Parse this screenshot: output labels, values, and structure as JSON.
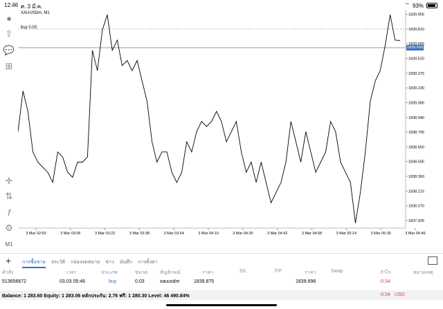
{
  "status": {
    "time": "12:46",
    "date": "ศ. 3 มี.ค.",
    "battery": "93%"
  },
  "chart": {
    "symbol_label": "XAUUSDm, M1",
    "buy_label": "buy 0.03",
    "current_price_tag": "1839.698",
    "y_ticks": [
      "1839.955",
      "1839.810",
      "1839.665",
      "1839.520",
      "1839.375",
      "1839.230",
      "1839.085",
      "1838.940",
      "1838.795",
      "1838.650",
      "1838.505",
      "1838.360",
      "1838.215",
      "1838.070",
      "1837.925"
    ],
    "x_ticks": [
      "3 Mar 02:50",
      "3 Mar 03:06",
      "3 Mar 03:22",
      "3 Mar 03:38",
      "3 Mar 03:54",
      "3 Mar 04:10",
      "3 Mar 04:26",
      "3 Mar 04:42",
      "3 Mar 04:58",
      "3 Mar 05:14",
      "3 Mar 05:30",
      "3 Mar 05:46"
    ]
  },
  "chart_data": {
    "type": "line",
    "title": "XAUUSDm, M1",
    "ylim": [
      1837.85,
      1840.0
    ],
    "series": [
      {
        "values": [
          1838.8,
          1839.2,
          1839.0,
          1838.6,
          1838.5,
          1838.45,
          1838.4,
          1838.3,
          1838.6,
          1838.55,
          1838.4,
          1838.35,
          1838.5,
          1838.5,
          1838.55,
          1839.6,
          1839.4,
          1839.8,
          1839.95,
          1839.6,
          1839.7,
          1839.45,
          1839.5,
          1839.4,
          1839.5,
          1839.3,
          1839.1,
          1838.7,
          1838.5,
          1838.6,
          1838.6,
          1838.4,
          1838.3,
          1838.4,
          1838.7,
          1838.6,
          1838.8,
          1838.9,
          1838.85,
          1838.9,
          1839.0,
          1838.9,
          1838.7,
          1838.8,
          1838.9,
          1838.6,
          1838.4,
          1838.5,
          1838.3,
          1838.5,
          1838.3,
          1838.1,
          1838.2,
          1838.3,
          1838.5,
          1838.9,
          1838.7,
          1838.5,
          1838.8,
          1838.6,
          1838.4,
          1838.5,
          1838.6,
          1838.9,
          1838.8,
          1838.5,
          1838.4,
          1838.3,
          1837.9,
          1838.2,
          1838.6,
          1839.1,
          1839.3,
          1839.4,
          1839.65,
          1839.95,
          1839.7,
          1839.698
        ]
      }
    ]
  },
  "sidebar": {
    "icons": [
      "user-icon",
      "export-icon",
      "chat-icon",
      "add-document-icon",
      "crosshair-icon",
      "indicators-icon",
      "function-icon",
      "objects-icon",
      "timeframe-icon"
    ],
    "timeframe_label": "M1"
  },
  "bottom": {
    "tabs": [
      "การซื้อขาย",
      "ประวัติ",
      "กล่องจดหมาย",
      "ข่าว",
      "บันทึก",
      "การตั้งค่า"
    ]
  },
  "table": {
    "headers": [
      "คำสั่ง",
      "เวลา",
      "ประเภท",
      "ขนาด",
      "สัญลักษณ์",
      "ราคา",
      "S/L",
      "T/P",
      "ราคา",
      "Swap",
      "กำไร",
      "หมายเหตุ"
    ],
    "row": {
      "order": "513656672",
      "time": "03.03 05:46",
      "type": "buy",
      "size": "0.03",
      "symbol": "xauusdm",
      "price": "1839.875",
      "sl": "",
      "tp": "",
      "current": "1839.698",
      "swap": "",
      "profit": "-0.54",
      "comment": ""
    }
  },
  "balance": {
    "text": "Balance: 1 283.60 Equity: 1 283.06 หลักประกัน: 2.76 ฟรี: 1 280.30 Level: 46 490.84%",
    "pl": "-0.54",
    "currency": "USD"
  }
}
